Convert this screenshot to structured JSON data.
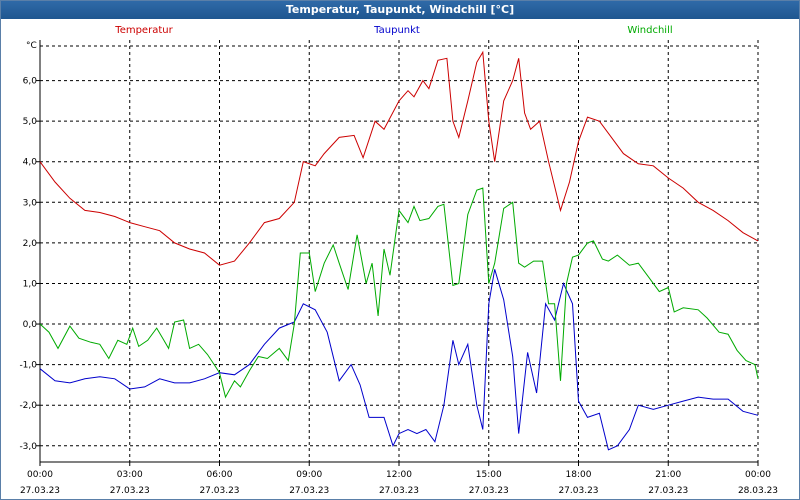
{
  "window": {
    "title": "Temperatur, Taupunkt, Windchill [°C]"
  },
  "colors": {
    "temperatur": "#cc0000",
    "taupunkt": "#0000cc",
    "windchill": "#00aa00",
    "grid": "#000000"
  },
  "chart_data": {
    "type": "line",
    "ylabel": "°C",
    "ylim": [
      -3.4,
      7.0
    ],
    "y_ticks": [
      6.0,
      5.0,
      4.0,
      3.0,
      2.0,
      1.0,
      0.0,
      -1.0,
      -2.0,
      -3.0
    ],
    "y_tick_labels": [
      "6,0",
      "5,0",
      "4,0",
      "3,0",
      "2,0",
      "1,0",
      "0,0",
      "-1,0",
      "-2,0",
      "-3,0"
    ],
    "x_ticks": [
      {
        "time": "00:00",
        "date": "27.03.23",
        "h": 0
      },
      {
        "time": "03:00",
        "date": "27.03.23",
        "h": 3
      },
      {
        "time": "06:00",
        "date": "27.03.23",
        "h": 6
      },
      {
        "time": "09:00",
        "date": "27.03.23",
        "h": 9
      },
      {
        "time": "12:00",
        "date": "27.03.23",
        "h": 12
      },
      {
        "time": "15:00",
        "date": "27.03.23",
        "h": 15
      },
      {
        "time": "18:00",
        "date": "27.03.23",
        "h": 18
      },
      {
        "time": "21:00",
        "date": "27.03.23",
        "h": 21
      },
      {
        "time": "00:00",
        "date": "28.03.23",
        "h": 24
      }
    ],
    "xlim": [
      0,
      24
    ],
    "legend": [
      {
        "name": "Temperatur",
        "key": "temperatur"
      },
      {
        "name": "Taupunkt",
        "key": "taupunkt"
      },
      {
        "name": "Windchill",
        "key": "windchill"
      }
    ],
    "series": [
      {
        "name": "Temperatur",
        "key": "temperatur",
        "points": [
          [
            0,
            4.0
          ],
          [
            0.5,
            3.5
          ],
          [
            1,
            3.1
          ],
          [
            1.5,
            2.8
          ],
          [
            2,
            2.75
          ],
          [
            2.5,
            2.65
          ],
          [
            3,
            2.5
          ],
          [
            3.5,
            2.4
          ],
          [
            4,
            2.3
          ],
          [
            4.5,
            2.0
          ],
          [
            5,
            1.85
          ],
          [
            5.5,
            1.75
          ],
          [
            6,
            1.45
          ],
          [
            6.5,
            1.55
          ],
          [
            7,
            2.0
          ],
          [
            7.5,
            2.5
          ],
          [
            8,
            2.6
          ],
          [
            8.5,
            3.0
          ],
          [
            8.8,
            4.0
          ],
          [
            9.2,
            3.9
          ],
          [
            9.5,
            4.2
          ],
          [
            10,
            4.6
          ],
          [
            10.5,
            4.65
          ],
          [
            10.8,
            4.1
          ],
          [
            11.2,
            5.0
          ],
          [
            11.5,
            4.8
          ],
          [
            12,
            5.5
          ],
          [
            12.3,
            5.75
          ],
          [
            12.5,
            5.6
          ],
          [
            12.8,
            6.0
          ],
          [
            13,
            5.8
          ],
          [
            13.3,
            6.5
          ],
          [
            13.6,
            6.55
          ],
          [
            13.8,
            5.0
          ],
          [
            14,
            4.6
          ],
          [
            14.3,
            5.5
          ],
          [
            14.6,
            6.45
          ],
          [
            14.8,
            6.7
          ],
          [
            15,
            5.0
          ],
          [
            15.2,
            4.0
          ],
          [
            15.5,
            5.5
          ],
          [
            15.8,
            6.0
          ],
          [
            16,
            6.55
          ],
          [
            16.2,
            5.2
          ],
          [
            16.4,
            4.8
          ],
          [
            16.7,
            5.0
          ],
          [
            17,
            4.0
          ],
          [
            17.4,
            2.8
          ],
          [
            17.7,
            3.5
          ],
          [
            18,
            4.5
          ],
          [
            18.3,
            5.1
          ],
          [
            18.7,
            5.0
          ],
          [
            19,
            4.7
          ],
          [
            19.5,
            4.2
          ],
          [
            20,
            3.95
          ],
          [
            20.5,
            3.9
          ],
          [
            21,
            3.6
          ],
          [
            21.5,
            3.35
          ],
          [
            22,
            3.0
          ],
          [
            22.5,
            2.8
          ],
          [
            23,
            2.55
          ],
          [
            23.5,
            2.25
          ],
          [
            24,
            2.05
          ]
        ]
      },
      {
        "name": "Taupunkt",
        "key": "taupunkt",
        "points": [
          [
            0,
            -1.1
          ],
          [
            0.5,
            -1.4
          ],
          [
            1,
            -1.45
          ],
          [
            1.5,
            -1.35
          ],
          [
            2,
            -1.3
          ],
          [
            2.5,
            -1.35
          ],
          [
            3,
            -1.6
          ],
          [
            3.5,
            -1.55
          ],
          [
            4,
            -1.35
          ],
          [
            4.5,
            -1.45
          ],
          [
            5,
            -1.45
          ],
          [
            5.5,
            -1.35
          ],
          [
            6,
            -1.2
          ],
          [
            6.5,
            -1.25
          ],
          [
            7,
            -1.0
          ],
          [
            7.5,
            -0.5
          ],
          [
            8,
            -0.1
          ],
          [
            8.5,
            0.05
          ],
          [
            8.8,
            0.5
          ],
          [
            9.2,
            0.35
          ],
          [
            9.6,
            -0.2
          ],
          [
            10,
            -1.4
          ],
          [
            10.4,
            -1.0
          ],
          [
            10.7,
            -1.5
          ],
          [
            11,
            -2.3
          ],
          [
            11.5,
            -2.3
          ],
          [
            11.8,
            -3.0
          ],
          [
            12,
            -2.7
          ],
          [
            12.3,
            -2.6
          ],
          [
            12.6,
            -2.7
          ],
          [
            12.9,
            -2.6
          ],
          [
            13.2,
            -2.9
          ],
          [
            13.5,
            -2.0
          ],
          [
            13.8,
            -0.4
          ],
          [
            14,
            -1.0
          ],
          [
            14.3,
            -0.5
          ],
          [
            14.6,
            -2.0
          ],
          [
            14.8,
            -2.6
          ],
          [
            15,
            0.5
          ],
          [
            15.2,
            1.35
          ],
          [
            15.5,
            0.6
          ],
          [
            15.8,
            -0.8
          ],
          [
            16,
            -2.7
          ],
          [
            16.3,
            -0.7
          ],
          [
            16.6,
            -1.7
          ],
          [
            16.9,
            0.5
          ],
          [
            17.2,
            0.1
          ],
          [
            17.5,
            1.0
          ],
          [
            17.8,
            0.5
          ],
          [
            18,
            -1.9
          ],
          [
            18.3,
            -2.3
          ],
          [
            18.7,
            -2.2
          ],
          [
            19,
            -3.1
          ],
          [
            19.3,
            -3.0
          ],
          [
            19.7,
            -2.6
          ],
          [
            20,
            -2.0
          ],
          [
            20.5,
            -2.1
          ],
          [
            21,
            -2.0
          ],
          [
            21.5,
            -1.9
          ],
          [
            22,
            -1.8
          ],
          [
            22.5,
            -1.85
          ],
          [
            23,
            -1.85
          ],
          [
            23.5,
            -2.15
          ],
          [
            24,
            -2.25
          ]
        ]
      },
      {
        "name": "Windchill",
        "key": "windchill",
        "points": [
          [
            0,
            0.0
          ],
          [
            0.3,
            -0.2
          ],
          [
            0.6,
            -0.6
          ],
          [
            1,
            -0.05
          ],
          [
            1.3,
            -0.35
          ],
          [
            1.7,
            -0.45
          ],
          [
            2,
            -0.5
          ],
          [
            2.3,
            -0.85
          ],
          [
            2.6,
            -0.4
          ],
          [
            2.9,
            -0.5
          ],
          [
            3.1,
            -0.1
          ],
          [
            3.3,
            -0.55
          ],
          [
            3.6,
            -0.4
          ],
          [
            3.9,
            -0.1
          ],
          [
            4.1,
            -0.35
          ],
          [
            4.3,
            -0.6
          ],
          [
            4.5,
            0.05
          ],
          [
            4.8,
            0.1
          ],
          [
            5,
            -0.6
          ],
          [
            5.3,
            -0.5
          ],
          [
            5.6,
            -0.75
          ],
          [
            6,
            -1.2
          ],
          [
            6.2,
            -1.8
          ],
          [
            6.5,
            -1.4
          ],
          [
            6.7,
            -1.55
          ],
          [
            7,
            -1.15
          ],
          [
            7.3,
            -0.8
          ],
          [
            7.6,
            -0.85
          ],
          [
            8,
            -0.6
          ],
          [
            8.3,
            -0.9
          ],
          [
            8.5,
            0.0
          ],
          [
            8.7,
            1.75
          ],
          [
            9,
            1.75
          ],
          [
            9.2,
            0.8
          ],
          [
            9.5,
            1.5
          ],
          [
            9.8,
            1.95
          ],
          [
            10,
            1.5
          ],
          [
            10.3,
            0.85
          ],
          [
            10.6,
            2.2
          ],
          [
            10.9,
            1.0
          ],
          [
            11.1,
            1.5
          ],
          [
            11.3,
            0.2
          ],
          [
            11.5,
            1.85
          ],
          [
            11.7,
            1.2
          ],
          [
            12,
            2.8
          ],
          [
            12.3,
            2.5
          ],
          [
            12.5,
            2.9
          ],
          [
            12.7,
            2.55
          ],
          [
            13,
            2.6
          ],
          [
            13.3,
            2.9
          ],
          [
            13.5,
            2.95
          ],
          [
            13.8,
            0.95
          ],
          [
            14,
            1.0
          ],
          [
            14.3,
            2.7
          ],
          [
            14.6,
            3.3
          ],
          [
            14.8,
            3.35
          ],
          [
            15,
            1.0
          ],
          [
            15.2,
            1.5
          ],
          [
            15.5,
            2.85
          ],
          [
            15.8,
            3.0
          ],
          [
            16,
            1.5
          ],
          [
            16.2,
            1.4
          ],
          [
            16.5,
            1.55
          ],
          [
            16.8,
            1.55
          ],
          [
            17,
            0.5
          ],
          [
            17.2,
            0.5
          ],
          [
            17.4,
            -1.4
          ],
          [
            17.6,
            1.0
          ],
          [
            17.8,
            1.65
          ],
          [
            18,
            1.7
          ],
          [
            18.3,
            2.0
          ],
          [
            18.5,
            2.05
          ],
          [
            18.8,
            1.6
          ],
          [
            19,
            1.55
          ],
          [
            19.3,
            1.7
          ],
          [
            19.7,
            1.45
          ],
          [
            20,
            1.5
          ],
          [
            20.3,
            1.2
          ],
          [
            20.7,
            0.8
          ],
          [
            21,
            0.9
          ],
          [
            21.2,
            0.3
          ],
          [
            21.5,
            0.4
          ],
          [
            22,
            0.35
          ],
          [
            22.3,
            0.15
          ],
          [
            22.7,
            -0.2
          ],
          [
            23,
            -0.25
          ],
          [
            23.3,
            -0.65
          ],
          [
            23.6,
            -0.9
          ],
          [
            23.9,
            -1.0
          ],
          [
            24,
            -1.35
          ]
        ]
      }
    ]
  }
}
